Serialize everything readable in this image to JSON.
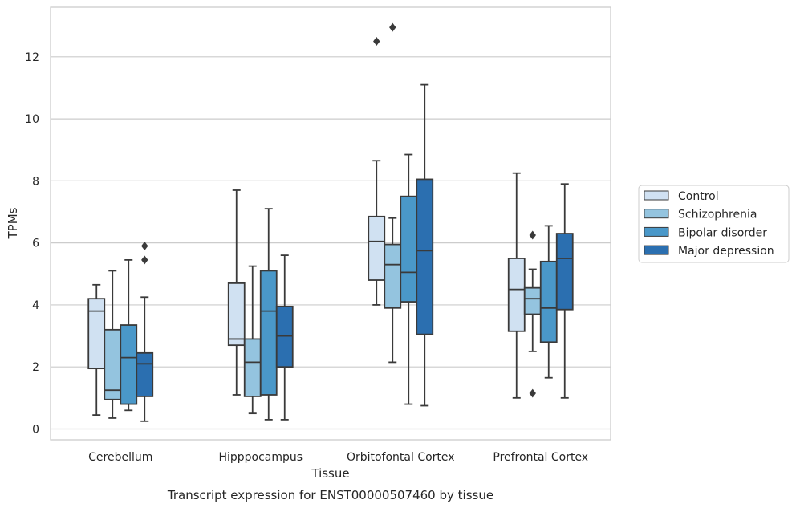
{
  "chart_data": {
    "type": "box",
    "caption": "Transcript expression for ENST00000507460 by tissue",
    "xlabel": "Tissue",
    "ylabel": "TPMs",
    "ylim": [
      -0.35,
      13.6
    ],
    "yticks": [
      0,
      2,
      4,
      6,
      8,
      10,
      12
    ],
    "grid": true,
    "legend_placement": "right",
    "categories": [
      "Cerebellum",
      "Hipppocampus",
      "Orbitofontal Cortex",
      "Prefrontal Cortex"
    ],
    "series": [
      {
        "name": "Control",
        "color": "#d0e1f2",
        "boxes": [
          {
            "whisker_low": 0.45,
            "q1": 1.95,
            "median": 3.8,
            "q3": 4.2,
            "whisker_high": 4.65,
            "outliers": []
          },
          {
            "whisker_low": 1.1,
            "q1": 2.7,
            "median": 2.9,
            "q3": 4.7,
            "whisker_high": 7.7,
            "outliers": []
          },
          {
            "whisker_low": 4.0,
            "q1": 4.8,
            "median": 6.05,
            "q3": 6.85,
            "whisker_high": 8.65,
            "outliers": [
              12.5
            ]
          },
          {
            "whisker_low": 1.0,
            "q1": 3.15,
            "median": 4.5,
            "q3": 5.5,
            "whisker_high": 8.25,
            "outliers": []
          }
        ]
      },
      {
        "name": "Schizophrenia",
        "color": "#94c4df",
        "boxes": [
          {
            "whisker_low": 0.35,
            "q1": 0.95,
            "median": 1.25,
            "q3": 3.2,
            "whisker_high": 5.1,
            "outliers": []
          },
          {
            "whisker_low": 0.5,
            "q1": 1.05,
            "median": 2.15,
            "q3": 2.9,
            "whisker_high": 5.25,
            "outliers": []
          },
          {
            "whisker_low": 2.15,
            "q1": 3.9,
            "median": 5.3,
            "q3": 5.95,
            "whisker_high": 6.8,
            "outliers": [
              12.95
            ]
          },
          {
            "whisker_low": 2.5,
            "q1": 3.7,
            "median": 4.2,
            "q3": 4.55,
            "whisker_high": 5.15,
            "outliers": [
              6.25,
              1.15
            ]
          }
        ]
      },
      {
        "name": "Bipolar disorder",
        "color": "#4a98c9",
        "boxes": [
          {
            "whisker_low": 0.6,
            "q1": 0.8,
            "median": 2.3,
            "q3": 3.35,
            "whisker_high": 5.45,
            "outliers": []
          },
          {
            "whisker_low": 0.3,
            "q1": 1.1,
            "median": 3.8,
            "q3": 5.1,
            "whisker_high": 7.1,
            "outliers": []
          },
          {
            "whisker_low": 0.8,
            "q1": 4.1,
            "median": 5.05,
            "q3": 7.5,
            "whisker_high": 8.85,
            "outliers": []
          },
          {
            "whisker_low": 1.65,
            "q1": 2.8,
            "median": 3.9,
            "q3": 5.4,
            "whisker_high": 6.55,
            "outliers": []
          }
        ]
      },
      {
        "name": "Major depression",
        "color": "#2b6fb0",
        "boxes": [
          {
            "whisker_low": 0.25,
            "q1": 1.05,
            "median": 2.1,
            "q3": 2.45,
            "whisker_high": 4.25,
            "outliers": [
              5.9,
              5.45
            ]
          },
          {
            "whisker_low": 0.3,
            "q1": 2.0,
            "median": 3.0,
            "q3": 3.95,
            "whisker_high": 5.6,
            "outliers": []
          },
          {
            "whisker_low": 0.75,
            "q1": 3.05,
            "median": 5.75,
            "q3": 8.05,
            "whisker_high": 11.1,
            "outliers": []
          },
          {
            "whisker_low": 1.0,
            "q1": 3.85,
            "median": 5.5,
            "q3": 6.3,
            "whisker_high": 7.9,
            "outliers": []
          }
        ]
      }
    ]
  }
}
